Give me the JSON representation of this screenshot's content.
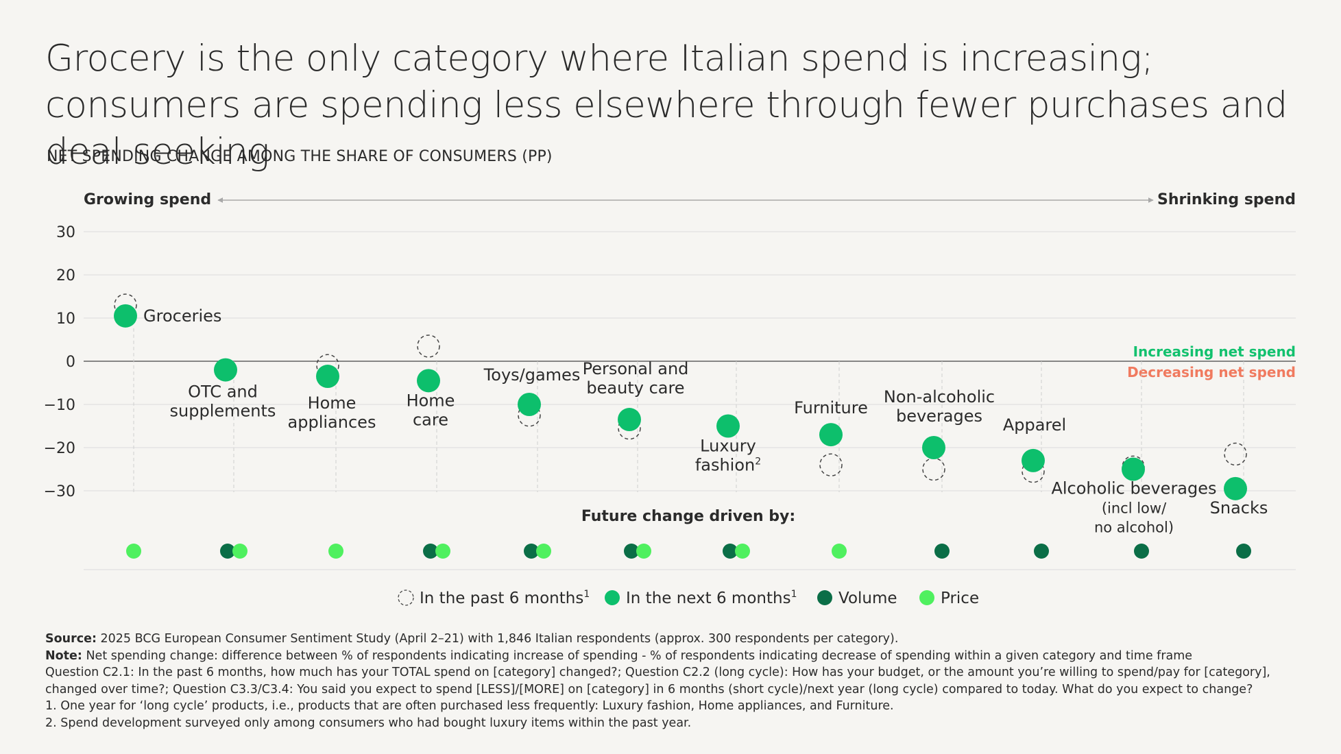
{
  "title": "Grocery is the only category where Italian spend is increasing; consumers are spending less elsewhere through fewer purchases and deal seeking",
  "subtitle": "NET SPENDING CHANGE AMONG THE SHARE OF CONSUMERS (PP)",
  "footnotes": {
    "source_label": "Source:",
    "source_text": " 2025 BCG European Consumer Sentiment Study (April 2–21) with 1,846 Italian respondents (approx. 300 respondents per category).",
    "note_label": "Note:",
    "note_text": " Net spending change: difference between % of respondents indicating increase of spending - % of respondents indicating decrease of spending within a given category and time frame",
    "question": "Question C2.1: In the past 6 months, how much has your TOTAL spend on [category] changed?; Question C2.2 (long cycle): How has your budget, or the amount you’re willing to spend/pay for [category], changed over time?; Question C3.3/C3.4: You said you expect to spend [LESS]/[MORE] on [category] in 6 months (short cycle)/next year (long cycle) compared to today. What do you expect to change?",
    "fn1": "1. One year for ‘long cycle’ products, i.e., products that are often purchased less frequently: Luxury fashion, Home appliances, and Furniture.",
    "fn2": "2. Spend development surveyed only among consumers who had bought luxury items within the past year."
  },
  "colors": {
    "next6": "#0dbf6c",
    "volume": "#0b6e47",
    "price": "#4ff05f",
    "increasing": "#12c16e",
    "decreasing": "#f07a5f",
    "text": "#2b2b2b",
    "grid": "#dcdcdc"
  },
  "chart_data": {
    "type": "scatter",
    "ylim": [
      -30,
      30
    ],
    "yticks": [
      30,
      20,
      10,
      0,
      -10,
      -20,
      -30
    ],
    "ytick_labels": [
      "30",
      "20",
      "10",
      "0",
      "−10",
      "−20",
      "−30"
    ],
    "direction_left": "Growing spend",
    "direction_right": "Shrinking spend",
    "zero_label_above": "Increasing net spend",
    "zero_label_below": "Decreasing net spend",
    "drivers_title": "Future change driven by:",
    "legend": [
      {
        "key": "past",
        "label": "In the past 6 months",
        "sup": "1"
      },
      {
        "key": "next",
        "label": "In the next 6 months",
        "sup": "1"
      },
      {
        "key": "volume",
        "label": "Volume",
        "sup": ""
      },
      {
        "key": "price",
        "label": "Price",
        "sup": ""
      }
    ],
    "categories": [
      {
        "lines": [
          "Groceries"
        ],
        "sup": "",
        "past": 13,
        "next": 10.5,
        "drivers": [
          "price"
        ]
      },
      {
        "lines": [
          "OTC and",
          "supplements"
        ],
        "sup": "",
        "past": null,
        "next": -2,
        "drivers": [
          "volume",
          "price"
        ]
      },
      {
        "lines": [
          "Home",
          "appliances"
        ],
        "sup": "",
        "past": -1,
        "next": -3.5,
        "drivers": [
          "price"
        ]
      },
      {
        "lines": [
          "Home",
          "care"
        ],
        "sup": "",
        "past": 3.5,
        "next": -4.5,
        "drivers": [
          "volume",
          "price"
        ]
      },
      {
        "lines": [
          "Toys/games"
        ],
        "sup": "",
        "past": -12.5,
        "next": -10,
        "drivers": [
          "volume",
          "price"
        ]
      },
      {
        "lines": [
          "Personal and",
          "beauty care"
        ],
        "sup": "",
        "past": -15.5,
        "next": -13.5,
        "drivers": [
          "volume",
          "price"
        ]
      },
      {
        "lines": [
          "Luxury",
          "fashion"
        ],
        "sup": "2",
        "past": null,
        "next": -15,
        "drivers": [
          "volume",
          "price"
        ]
      },
      {
        "lines": [
          "Furniture"
        ],
        "sup": "",
        "past": -24,
        "next": -17,
        "drivers": [
          "price"
        ]
      },
      {
        "lines": [
          "Non-alcoholic",
          "beverages"
        ],
        "sup": "",
        "past": -25,
        "next": -20,
        "drivers": [
          "volume"
        ]
      },
      {
        "lines": [
          "Apparel"
        ],
        "sup": "",
        "past": -25.5,
        "next": -23,
        "drivers": [
          "volume"
        ]
      },
      {
        "lines": [
          "Alcoholic beverages",
          "(incl low/",
          "no alcohol)"
        ],
        "sup": "",
        "past": -24.5,
        "next": -25,
        "drivers": [
          "volume"
        ]
      },
      {
        "lines": [
          "Snacks"
        ],
        "sup": "",
        "past": -21.5,
        "next": -29.5,
        "drivers": [
          "volume"
        ]
      }
    ]
  }
}
